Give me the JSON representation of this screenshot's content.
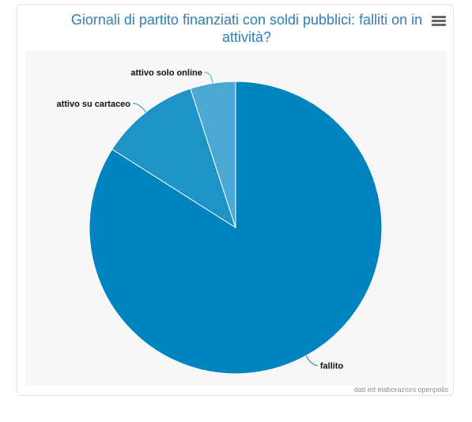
{
  "chart_data": {
    "type": "pie",
    "title": "Giornali di partito finanziati con soldi pubblici: falliti on in attività?",
    "categories": [
      "fallito",
      "attivo su cartaceo",
      "attivo solo online"
    ],
    "values": [
      84,
      11,
      5
    ],
    "colors": [
      "#0084bf",
      "#1e93c8",
      "#4aa8d3"
    ],
    "legend": "none",
    "credits": "dati ed elaborazioni openpolis"
  },
  "toolbar": {
    "menu_icon": "hamburger-menu-icon"
  }
}
